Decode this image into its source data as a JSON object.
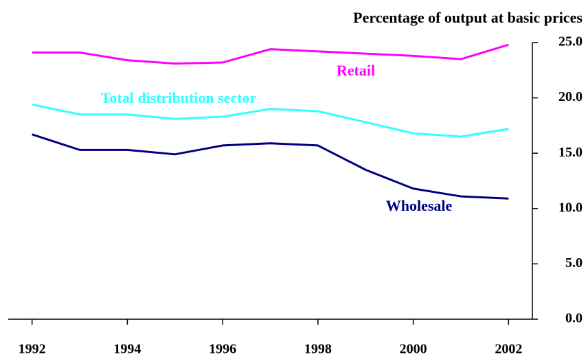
{
  "chart_data": {
    "type": "line",
    "title": "Percentage of output at basic prices",
    "x": [
      1992,
      1993,
      1994,
      1995,
      1996,
      1997,
      1998,
      1999,
      2000,
      2001,
      2002
    ],
    "xlim": [
      1991.5,
      2002.5
    ],
    "xticks": [
      1992,
      1994,
      1996,
      1998,
      2000,
      2002
    ],
    "ylim": [
      0,
      25
    ],
    "yticks": [
      {
        "value": 0,
        "label": "0.0"
      },
      {
        "value": 5,
        "label": "5.0"
      },
      {
        "value": 10,
        "label": "10.0"
      },
      {
        "value": 15,
        "label": "15.0"
      },
      {
        "value": 20,
        "label": "20.0"
      },
      {
        "value": 25,
        "label": "25.0"
      }
    ],
    "grid": false,
    "series": [
      {
        "name": "Retail",
        "color": "#ff00ff",
        "values": [
          24.1,
          24.1,
          23.4,
          23.1,
          23.2,
          24.4,
          24.2,
          24.0,
          23.8,
          23.5,
          24.8
        ]
      },
      {
        "name": "Total distribution sector",
        "color": "#33ffff",
        "values": [
          19.4,
          18.5,
          18.5,
          18.1,
          18.3,
          19.0,
          18.8,
          17.8,
          16.8,
          16.5,
          17.2
        ]
      },
      {
        "name": "Wholesale",
        "color": "#000080",
        "values": [
          16.7,
          15.3,
          15.3,
          14.9,
          15.7,
          15.9,
          15.7,
          13.5,
          11.8,
          11.1,
          10.9
        ]
      }
    ]
  }
}
